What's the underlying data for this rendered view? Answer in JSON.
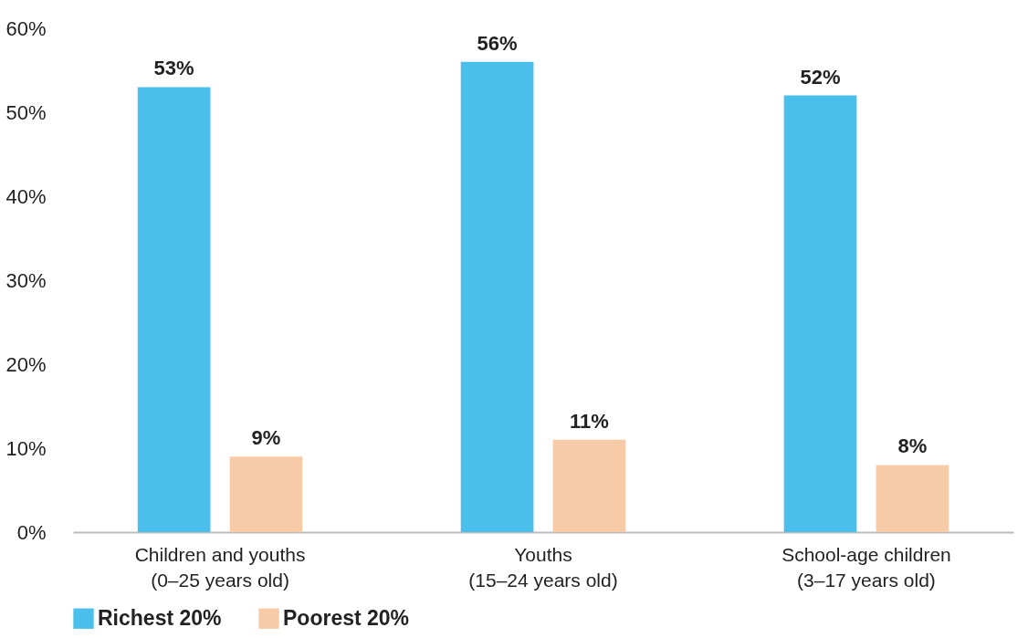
{
  "chart_data": {
    "type": "bar",
    "categories": [
      "Children and youths (0–25 years old)",
      "Youths (15–24 years old)",
      "School-age children (3–17 years old)"
    ],
    "series": [
      {
        "name": "Richest 20%",
        "color": "#4bbfeb",
        "values": [
          53,
          56,
          52
        ],
        "value_labels": [
          "53%",
          "56%",
          "52%"
        ]
      },
      {
        "name": "Poorest 20%",
        "color": "#f8cba8",
        "values": [
          9,
          11,
          8
        ],
        "value_labels": [
          "9%",
          "11%",
          "8%"
        ]
      }
    ],
    "ylim": [
      0,
      60
    ],
    "yticks": [
      {
        "value": 0,
        "label": "0%"
      },
      {
        "value": 10,
        "label": "10%"
      },
      {
        "value": 20,
        "label": "20%"
      },
      {
        "value": 30,
        "label": "30%"
      },
      {
        "value": 40,
        "label": "40%"
      },
      {
        "value": 50,
        "label": "50%"
      },
      {
        "value": 60,
        "label": "60%"
      }
    ],
    "legend": "bottom"
  }
}
